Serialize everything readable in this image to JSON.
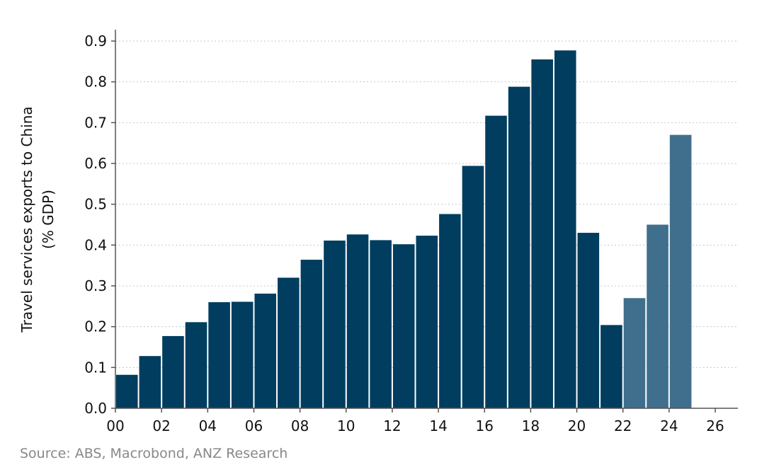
{
  "chart_data": {
    "type": "bar",
    "title": "",
    "xlabel": "",
    "ylabel_lines": [
      "Travel services exports to China",
      "(% GDP)"
    ],
    "categories": [
      "00",
      "01",
      "02",
      "03",
      "04",
      "05",
      "06",
      "07",
      "08",
      "09",
      "10",
      "11",
      "12",
      "13",
      "14",
      "15",
      "16",
      "17",
      "18",
      "19",
      "20",
      "21",
      "22",
      "23",
      "24"
    ],
    "values": [
      0.082,
      0.128,
      0.177,
      0.211,
      0.26,
      0.261,
      0.281,
      0.32,
      0.364,
      0.411,
      0.426,
      0.412,
      0.402,
      0.423,
      0.476,
      0.594,
      0.717,
      0.788,
      0.855,
      0.877,
      0.43,
      0.204,
      0.27,
      0.45,
      0.67
    ],
    "forecast_from_index": 22,
    "xlim": [
      0,
      27
    ],
    "xticks": [
      "00",
      "02",
      "04",
      "06",
      "08",
      "10",
      "12",
      "14",
      "16",
      "18",
      "20",
      "22",
      "24",
      "26"
    ],
    "ylim": [
      0,
      0.9
    ],
    "yticks": [
      "0.0",
      "0.1",
      "0.2",
      "0.3",
      "0.4",
      "0.5",
      "0.6",
      "0.7",
      "0.8",
      "0.9"
    ],
    "grid": true,
    "colors": {
      "actual": "#003d5f",
      "forecast": "#3f6f8c",
      "grid": "#b8cdd6"
    }
  },
  "source": "Source: ABS, Macrobond, ANZ Research"
}
